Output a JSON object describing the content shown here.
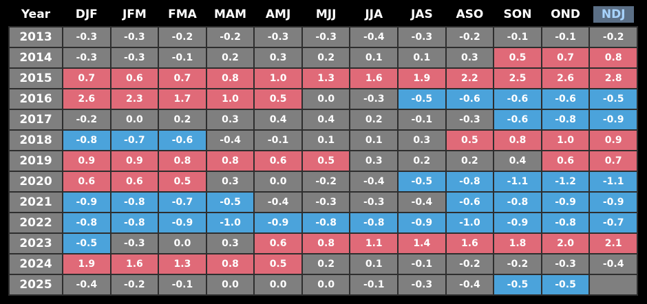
{
  "table": {
    "header": [
      "Year",
      "DJF",
      "JFM",
      "FMA",
      "MAM",
      "AMJ",
      "MJJ",
      "JJA",
      "JAS",
      "ASO",
      "SON",
      "OND",
      "NDJ"
    ],
    "highlighted_column": 12,
    "threshold": 0.5,
    "colors": {
      "warm": "#e06a78",
      "cool": "#4ba3db",
      "neutral": "#7f7f7f"
    },
    "rows": [
      {
        "year": "2013",
        "values": [
          "-0.3",
          "-0.3",
          "-0.2",
          "-0.2",
          "-0.3",
          "-0.3",
          "-0.4",
          "-0.3",
          "-0.2",
          "-0.1",
          "-0.1",
          "-0.2"
        ]
      },
      {
        "year": "2014",
        "values": [
          "-0.3",
          "-0.3",
          "-0.1",
          "0.2",
          "0.3",
          "0.2",
          "0.1",
          "0.1",
          "0.3",
          "0.5",
          "0.7",
          "0.8"
        ]
      },
      {
        "year": "2015",
        "values": [
          "0.7",
          "0.6",
          "0.7",
          "0.8",
          "1.0",
          "1.3",
          "1.6",
          "1.9",
          "2.2",
          "2.5",
          "2.6",
          "2.8"
        ]
      },
      {
        "year": "2016",
        "values": [
          "2.6",
          "2.3",
          "1.7",
          "1.0",
          "0.5",
          "0.0",
          "-0.3",
          "-0.5",
          "-0.6",
          "-0.6",
          "-0.6",
          "-0.5"
        ]
      },
      {
        "year": "2017",
        "values": [
          "-0.2",
          "0.0",
          "0.2",
          "0.3",
          "0.4",
          "0.4",
          "0.2",
          "-0.1",
          "-0.3",
          "-0.6",
          "-0.8",
          "-0.9"
        ]
      },
      {
        "year": "2018",
        "values": [
          "-0.8",
          "-0.7",
          "-0.6",
          "-0.4",
          "-0.1",
          "0.1",
          "0.1",
          "0.3",
          "0.5",
          "0.8",
          "1.0",
          "0.9"
        ]
      },
      {
        "year": "2019",
        "values": [
          "0.9",
          "0.9",
          "0.8",
          "0.8",
          "0.6",
          "0.5",
          "0.3",
          "0.2",
          "0.2",
          "0.4",
          "0.6",
          "0.7"
        ]
      },
      {
        "year": "2020",
        "values": [
          "0.6",
          "0.6",
          "0.5",
          "0.3",
          "0.0",
          "-0.2",
          "-0.4",
          "-0.5",
          "-0.8",
          "-1.1",
          "-1.2",
          "-1.1"
        ]
      },
      {
        "year": "2021",
        "values": [
          "-0.9",
          "-0.8",
          "-0.7",
          "-0.5",
          "-0.4",
          "-0.3",
          "-0.3",
          "-0.4",
          "-0.6",
          "-0.8",
          "-0.9",
          "-0.9"
        ]
      },
      {
        "year": "2022",
        "values": [
          "-0.8",
          "-0.8",
          "-0.9",
          "-1.0",
          "-0.9",
          "-0.8",
          "-0.8",
          "-0.9",
          "-1.0",
          "-0.9",
          "-0.8",
          "-0.7"
        ]
      },
      {
        "year": "2023",
        "values": [
          "-0.5",
          "-0.3",
          "0.0",
          "0.3",
          "0.6",
          "0.8",
          "1.1",
          "1.4",
          "1.6",
          "1.8",
          "2.0",
          "2.1"
        ]
      },
      {
        "year": "2024",
        "values": [
          "1.9",
          "1.6",
          "1.3",
          "0.8",
          "0.5",
          "0.2",
          "0.1",
          "-0.1",
          "-0.2",
          "-0.2",
          "-0.3",
          "-0.4"
        ]
      },
      {
        "year": "2025",
        "values": [
          "-0.4",
          "-0.2",
          "-0.1",
          "0.0",
          "0.0",
          "0.0",
          "-0.1",
          "-0.3",
          "-0.4",
          "-0.5",
          "-0.5"
        ]
      }
    ]
  }
}
